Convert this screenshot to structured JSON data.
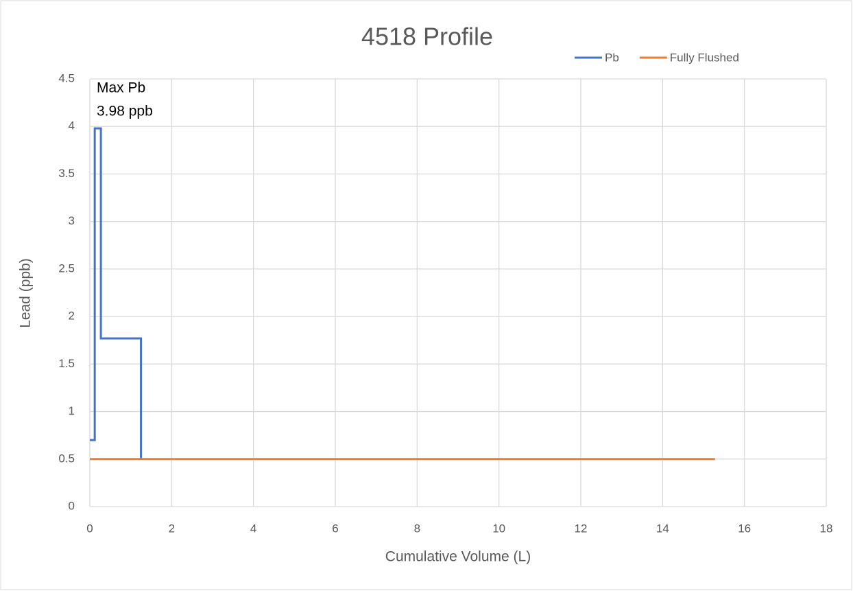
{
  "chart_data": {
    "type": "line",
    "title": "4518 Profile",
    "x_label": "Cumulative Volume (L)",
    "y_label": "Lead (ppb)",
    "annotation": [
      "Max Pb",
      "3.98 ppb"
    ],
    "series": [
      {
        "name": "Pb",
        "color": "#4472c4",
        "x": [
          0,
          0.12,
          0.12,
          0.27,
          0.27,
          1.25,
          1.25
        ],
        "values": [
          0.7,
          0.7,
          3.98,
          3.98,
          1.77,
          1.77,
          0.5
        ]
      },
      {
        "name": "Fully Flushed",
        "color": "#ed7d31",
        "x": [
          0,
          15.28
        ],
        "values": [
          0.5,
          0.5
        ]
      }
    ],
    "xlim": [
      0,
      18
    ],
    "xticks": [
      0,
      2,
      4,
      6,
      8,
      10,
      12,
      14,
      16,
      18
    ],
    "ylim": [
      0,
      4.5
    ],
    "yticks": [
      0,
      0.5,
      1,
      1.5,
      2,
      2.5,
      3,
      3.5,
      4,
      4.5
    ],
    "grid": true,
    "legend": "top-right"
  }
}
